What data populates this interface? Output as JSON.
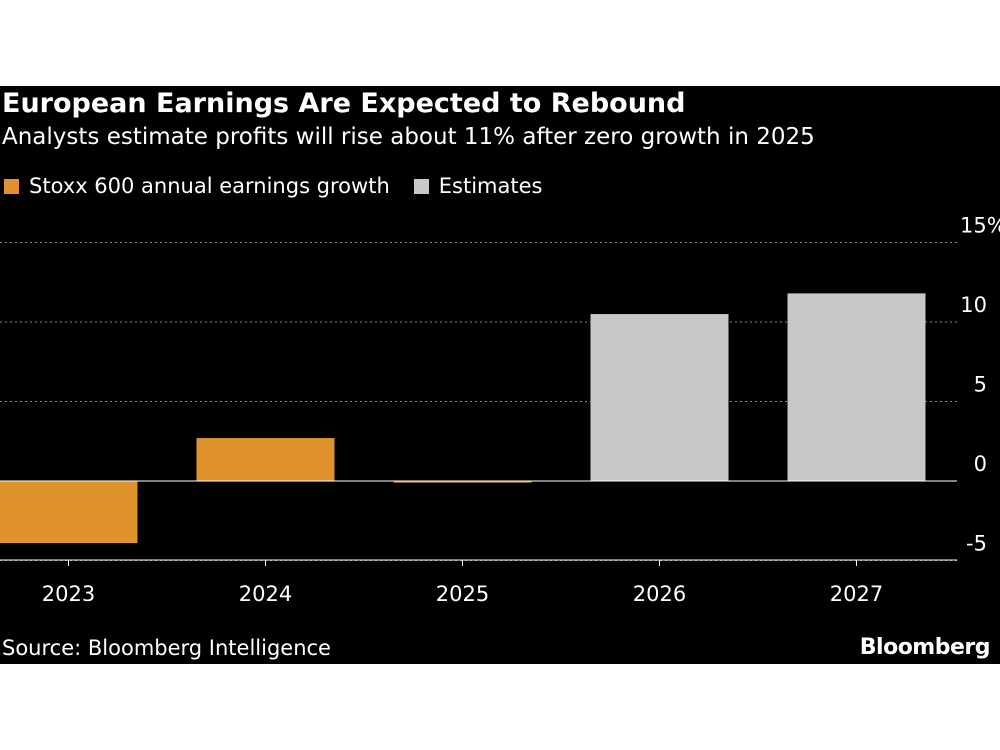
{
  "chart_data": {
    "type": "bar",
    "title": "European Earnings Are Expected to Rebound",
    "subtitle": "Analysts estimate profits will rise about 11% after zero growth in 2025",
    "categories": [
      "2023",
      "2024",
      "2025",
      "2026",
      "2027"
    ],
    "series": [
      {
        "name": "Stoxx 600 annual earnings growth",
        "color": "#e0922d",
        "values": [
          -3.9,
          2.7,
          -0.1,
          null,
          null
        ]
      },
      {
        "name": "Estimates",
        "color": "#c8c8c8",
        "values": [
          null,
          null,
          null,
          10.5,
          11.8
        ]
      }
    ],
    "ylim": [
      -5,
      15
    ],
    "yticks": [
      {
        "value": 15,
        "label": "15%"
      },
      {
        "value": 10,
        "label": "10"
      },
      {
        "value": 5,
        "label": "5"
      },
      {
        "value": 0,
        "label": "0"
      },
      {
        "value": -5,
        "label": "-5"
      }
    ],
    "grid": true,
    "legend": "top-left",
    "source": "Source: Bloomberg Intelligence",
    "brand": "Bloomberg"
  }
}
